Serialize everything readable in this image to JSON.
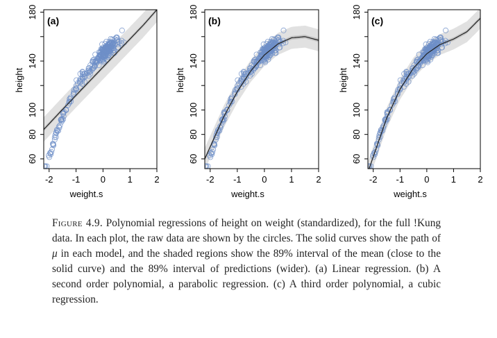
{
  "chart_data": [
    {
      "type": "scatter",
      "panel_label": "(a)",
      "model": "linear",
      "xlabel": "weight.s",
      "ylabel": "height",
      "xlim": [
        -2.2,
        2.0
      ],
      "ylim": [
        52,
        182
      ],
      "xticks": [
        -2,
        -1,
        0,
        1,
        2
      ],
      "yticks": [
        60,
        80,
        100,
        140,
        180
      ],
      "mu_curve": {
        "x": [
          -2.2,
          -1.5,
          -1.0,
          -0.5,
          0,
          0.5,
          1.0,
          1.5,
          1.8
        ],
        "y": [
          84,
          100.5,
          112,
          123.5,
          135,
          146.5,
          158,
          169.5,
          177
        ]
      },
      "mu_interval_halfwidth": 1.5,
      "prediction_interval_halfwidth": 10,
      "series": [
        {
          "marker": "open-circle",
          "color": "#6f8fc8"
        }
      ]
    },
    {
      "type": "scatter",
      "panel_label": "(b)",
      "model": "quadratic",
      "xlabel": "weight.s",
      "ylabel": "height",
      "xlim": [
        -2.2,
        2.0
      ],
      "ylim": [
        52,
        182
      ],
      "xticks": [
        -2,
        -1,
        0,
        1,
        2
      ],
      "yticks": [
        60,
        80,
        100,
        140,
        180
      ],
      "mu_curve": {
        "x": [
          -2.2,
          -1.5,
          -1.0,
          -0.5,
          0,
          0.5,
          1.0,
          1.5,
          2.0
        ],
        "y": [
          60,
          94.4,
          115,
          132,
          145,
          154,
          159,
          160,
          157
        ]
      },
      "mu_interval_halfwidth": 1.5,
      "prediction_interval_halfwidth": 9,
      "series": [
        {
          "marker": "open-circle",
          "color": "#6f8fc8"
        }
      ]
    },
    {
      "type": "scatter",
      "panel_label": "(c)",
      "model": "cubic",
      "xlabel": "weight.s",
      "ylabel": "height",
      "xlim": [
        -2.2,
        2.0
      ],
      "ylim": [
        52,
        182
      ],
      "xticks": [
        -2,
        -1,
        0,
        1,
        2
      ],
      "yticks": [
        60,
        80,
        100,
        140,
        180
      ],
      "mu_curve": {
        "x": [
          -2.2,
          -1.5,
          -1.0,
          -0.5,
          0,
          0.5,
          1.0,
          1.5,
          2.0
        ],
        "y": [
          49.2,
          93.2,
          117,
          134.2,
          146,
          153.6,
          158,
          164,
          175
        ]
      },
      "mu_interval_halfwidth": 1.5,
      "prediction_interval_halfwidth": 8.5,
      "series": [
        {
          "marker": "open-circle",
          "color": "#6f8fc8"
        }
      ]
    }
  ],
  "caption": {
    "figure_label": "Figure 4.9.",
    "text_1": " Polynomial regressions of height on weight (standardized), for the full !Kung data. In each plot, the raw data are shown by the circles. The solid curves show the path of ",
    "mu": "μ",
    "text_2": " in each model, and the shaded regions show the 89% interval of the mean (close to the solid curve) and the 89% interval of predictions (wider). (a) Linear regression. (b) A second order polynomial, a parabolic regression. (c) A third order polynomial, a cubic regression."
  }
}
